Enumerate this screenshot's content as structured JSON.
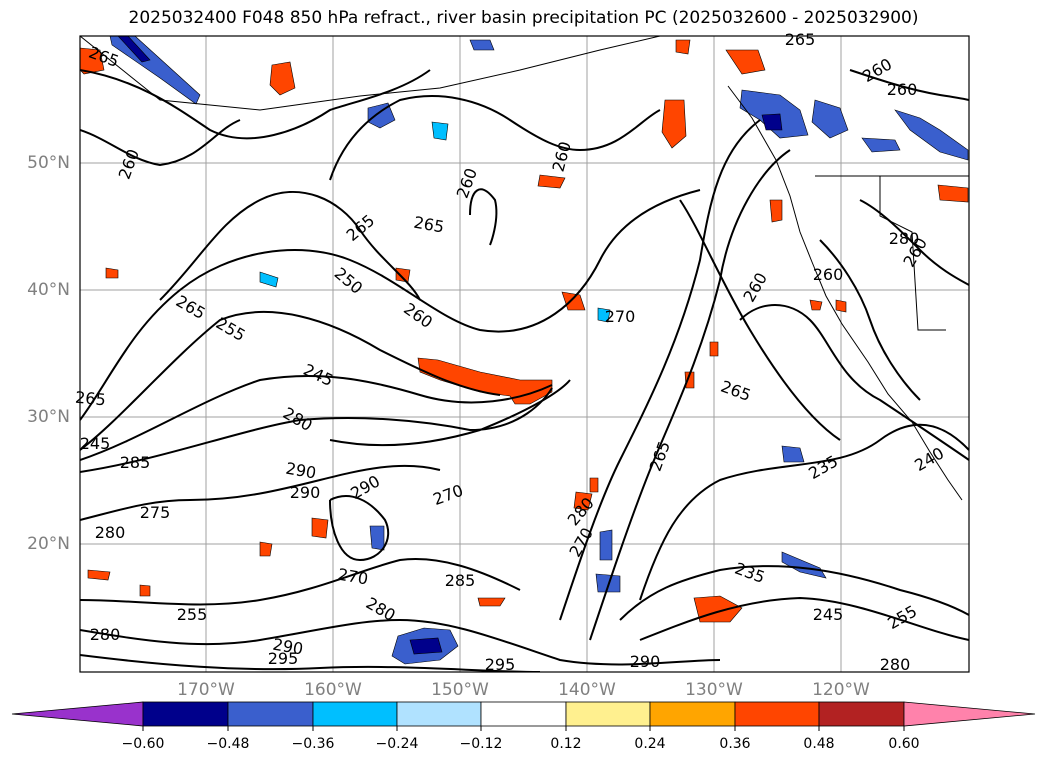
{
  "title": "2025032400 F048 850 hPa refract., river basin precipitation PC (2025032600 - 2025032900)",
  "lat_labels": [
    "50°N",
    "40°N",
    "30°N",
    "20°N"
  ],
  "lon_labels": [
    "170°W",
    "160°W",
    "150°W",
    "140°W",
    "130°W",
    "120°W"
  ],
  "colorbar": {
    "ticks": [
      "−0.60",
      "−0.48",
      "−0.36",
      "−0.24",
      "−0.12",
      "0.12",
      "0.24",
      "0.36",
      "0.48",
      "0.60"
    ],
    "colors": [
      "#9932cc",
      "#00008b",
      "#3a5fcd",
      "#00bfff",
      "#b0e2ff",
      "#ffffff",
      "#fff08f",
      "#ffa500",
      "#ff4500",
      "#b22222",
      "#ff82ab"
    ]
  },
  "contour_labels": [
    {
      "text": "265",
      "rot": 20
    },
    {
      "text": "260",
      "rot": -70
    },
    {
      "text": "265",
      "rot": -40
    },
    {
      "text": "265",
      "rot": 10
    },
    {
      "text": "260",
      "rot": -70
    },
    {
      "text": "260",
      "rot": -75
    },
    {
      "text": "250",
      "rot": 40
    },
    {
      "text": "260",
      "rot": 35
    },
    {
      "text": "265",
      "rot": 30
    },
    {
      "text": "255",
      "rot": 30
    },
    {
      "text": "245",
      "rot": 25
    },
    {
      "text": "270",
      "rot": 0
    },
    {
      "text": "260",
      "rot": -60
    },
    {
      "text": "265",
      "rot": 20
    },
    {
      "text": "265",
      "rot": 5
    },
    {
      "text": "245",
      "rot": 0
    },
    {
      "text": "285",
      "rot": 0
    },
    {
      "text": "280",
      "rot": 30
    },
    {
      "text": "290",
      "rot": 10
    },
    {
      "text": "290",
      "rot": -30
    },
    {
      "text": "270",
      "rot": -20
    },
    {
      "text": "275",
      "rot": 0
    },
    {
      "text": "280",
      "rot": 0
    },
    {
      "text": "280",
      "rot": -50
    },
    {
      "text": "270",
      "rot": -60
    },
    {
      "text": "265",
      "rot": -70
    },
    {
      "text": "270",
      "rot": 10
    },
    {
      "text": "285",
      "rot": 0
    },
    {
      "text": "280",
      "rot": 30
    },
    {
      "text": "290",
      "rot": 0
    },
    {
      "text": "255",
      "rot": 0
    },
    {
      "text": "290",
      "rot": 10
    },
    {
      "text": "295",
      "rot": 0
    },
    {
      "text": "295",
      "rot": 0
    },
    {
      "text": "290",
      "rot": 0
    },
    {
      "text": "280",
      "rot": 0
    },
    {
      "text": "235",
      "rot": 20
    },
    {
      "text": "245",
      "rot": 0
    },
    {
      "text": "255",
      "rot": -30
    },
    {
      "text": "235",
      "rot": -30
    },
    {
      "text": "240",
      "rot": -30
    },
    {
      "text": "280",
      "rot": 0
    },
    {
      "text": "260",
      "rot": -30
    },
    {
      "text": "260",
      "rot": 0
    },
    {
      "text": "260",
      "rot": -60
    },
    {
      "text": "280",
      "rot": 0
    },
    {
      "text": "260",
      "rot": 0
    },
    {
      "text": "265",
      "rot": 0
    }
  ]
}
